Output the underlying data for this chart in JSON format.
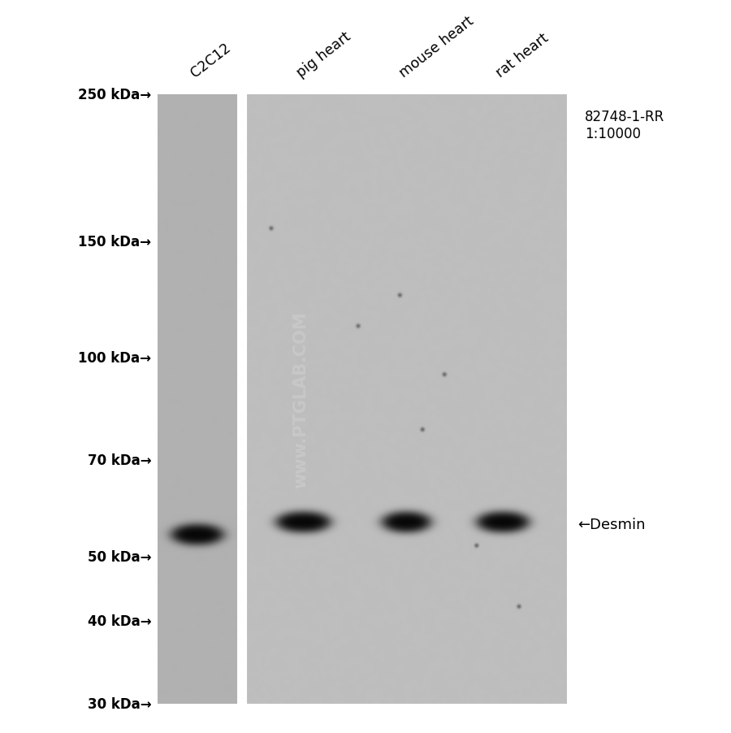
{
  "fig_width": 9.0,
  "fig_height": 9.03,
  "bg_color": "#ffffff",
  "sample_labels": [
    "C2C12",
    "pig heart",
    "mouse heart",
    "rat heart"
  ],
  "mw_markers": [
    "250 kDa→",
    "150 kDa→",
    "100 kDa→",
    "70 kDa→",
    "50 kDa→",
    "40 kDa→",
    "30 kDa→"
  ],
  "mw_values": [
    250,
    150,
    100,
    70,
    50,
    40,
    30
  ],
  "antibody_label": "82748-1-RR\n1:10000",
  "band_label": "←Desmin",
  "watermark": "www.PTGLAB.COM",
  "mw_label_color": "#000000",
  "watermark_color": "#c8c8c8",
  "lane1_gray": 0.695,
  "lane2_gray": 0.745,
  "band_intensity": 0.04,
  "band_blur": 5
}
